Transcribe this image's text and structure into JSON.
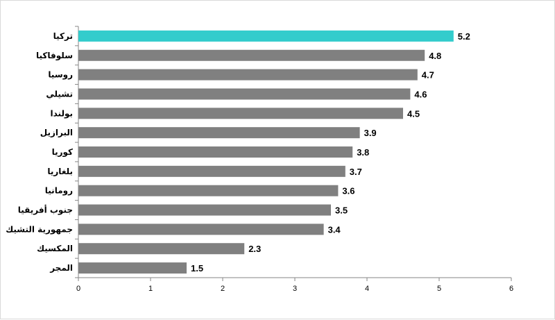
{
  "chart_data": {
    "type": "bar",
    "orientation": "horizontal",
    "title": "",
    "xlabel": "",
    "ylabel": "",
    "categories": [
      "تركيا",
      "سلوفاكيا",
      "روسيا",
      "تشيلي",
      "بولندا",
      "البرازيل",
      "كوريا",
      "بلغاريا",
      "رومانيا",
      "جنوب أفريقيا",
      "جمهورية التشيك",
      "المكسيك",
      "المجر"
    ],
    "values": [
      5.2,
      4.8,
      4.7,
      4.6,
      4.5,
      3.9,
      3.8,
      3.7,
      3.6,
      3.5,
      3.4,
      2.3,
      1.5
    ],
    "xlim": [
      0,
      6
    ],
    "xticks": [
      "0",
      "1",
      "2",
      "3",
      "4",
      "5",
      "6"
    ],
    "grid": false,
    "legend": "none",
    "colors": {
      "highlight": "#33cccc",
      "default": "#808080"
    },
    "highlight_index": 0
  }
}
